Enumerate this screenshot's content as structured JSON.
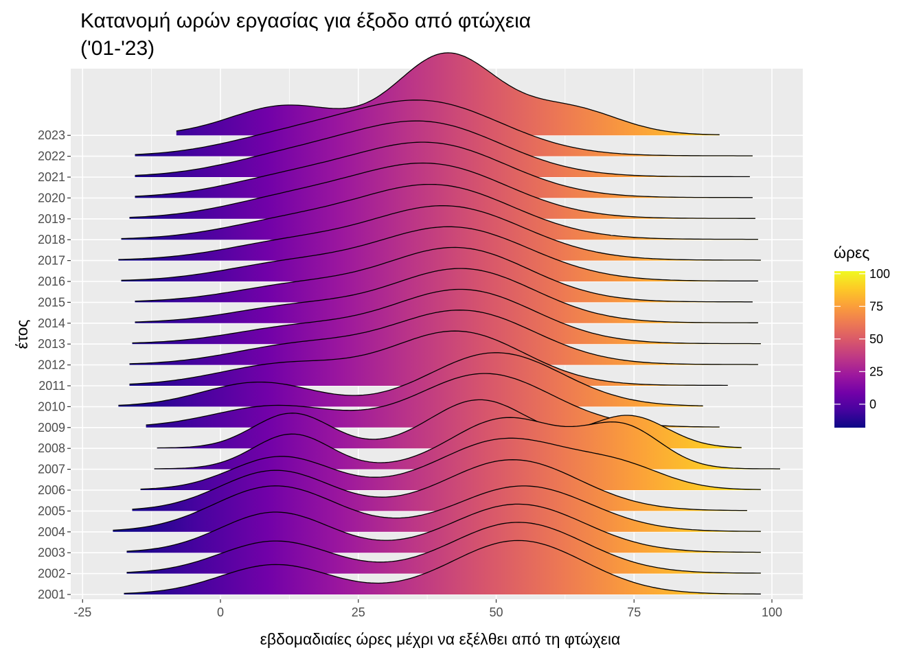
{
  "chart_data": {
    "type": "ridgeline",
    "title_line1": "Κατανομή ωρών εργασίας για έξοδο από φτώχεια",
    "title_line2": "('01-'23)",
    "xlabel": "εβδομαδιαίες ώρες μέχρι να εξέλθει από τη φτώχεια",
    "ylabel": "έτος",
    "xlim": [
      -25,
      106
    ],
    "x_ticks": [
      -25,
      0,
      25,
      50,
      75,
      100
    ],
    "x_tick_labels": [
      "-25",
      "0",
      "25",
      "50",
      "75",
      "100"
    ],
    "grid": true,
    "legend": {
      "title": "ώρες",
      "position": "right",
      "range": [
        -18,
        102
      ],
      "ticks": [
        0,
        25,
        50,
        75,
        100
      ],
      "tick_labels": [
        "0",
        "25",
        "50",
        "75",
        "100"
      ],
      "colormap": "plasma"
    },
    "colors": {
      "panel_background": "#ebebeb",
      "grid": "#ffffff",
      "outline": "#000000",
      "plasma_low": "#0d0887",
      "plasma_mid": "#cc4778",
      "plasma_high": "#f0f921"
    },
    "series": [
      {
        "year": "2001",
        "x_min": -17.5,
        "x_max": 98,
        "peaks": [
          {
            "mu": 10,
            "sd": 10,
            "h": 0.55
          },
          {
            "mu": 54,
            "sd": 12,
            "h": 1.0
          }
        ]
      },
      {
        "year": "2002",
        "x_min": -17,
        "x_max": 98,
        "peaks": [
          {
            "mu": 10,
            "sd": 10,
            "h": 0.6
          },
          {
            "mu": 54,
            "sd": 12,
            "h": 0.95
          }
        ]
      },
      {
        "year": "2003",
        "x_min": -17,
        "x_max": 98,
        "peaks": [
          {
            "mu": 10,
            "sd": 10,
            "h": 0.75
          },
          {
            "mu": 54,
            "sd": 12,
            "h": 0.9
          }
        ]
      },
      {
        "year": "2004",
        "x_min": -19.5,
        "x_max": 98,
        "peaks": [
          {
            "mu": 10,
            "sd": 11,
            "h": 0.85
          },
          {
            "mu": 55,
            "sd": 12,
            "h": 0.85
          }
        ]
      },
      {
        "year": "2005",
        "x_min": -16,
        "x_max": 95.5,
        "peaks": [
          {
            "mu": 10,
            "sd": 10,
            "h": 0.75
          },
          {
            "mu": 53,
            "sd": 12,
            "h": 0.95
          }
        ]
      },
      {
        "year": "2006",
        "x_min": -14.5,
        "x_max": 98,
        "peaks": [
          {
            "mu": 11,
            "sd": 9,
            "h": 0.62
          },
          {
            "mu": 52,
            "sd": 12,
            "h": 0.95
          },
          {
            "mu": 73,
            "sd": 8,
            "h": 0.35
          }
        ]
      },
      {
        "year": "2007",
        "x_min": -12,
        "x_max": 101.5,
        "peaks": [
          {
            "mu": 13,
            "sd": 7,
            "h": 0.65
          },
          {
            "mu": 52,
            "sd": 10,
            "h": 0.95
          },
          {
            "mu": 73,
            "sd": 7,
            "h": 0.75
          }
        ]
      },
      {
        "year": "2008",
        "x_min": -11.5,
        "x_max": 94.5,
        "peaks": [
          {
            "mu": 13,
            "sd": 7,
            "h": 0.65
          },
          {
            "mu": 47,
            "sd": 9,
            "h": 0.9
          },
          {
            "mu": 74,
            "sd": 7,
            "h": 0.6
          }
        ]
      },
      {
        "year": "2009",
        "x_min": -13.5,
        "x_max": 90.5,
        "peaks": [
          {
            "mu": 10,
            "sd": 11,
            "h": 0.4
          },
          {
            "mu": 48,
            "sd": 12,
            "h": 1.0
          }
        ]
      },
      {
        "year": "2010",
        "x_min": -18.5,
        "x_max": 87.5,
        "peaks": [
          {
            "mu": 7,
            "sd": 10,
            "h": 0.45
          },
          {
            "mu": 50,
            "sd": 12,
            "h": 1.0
          }
        ]
      },
      {
        "year": "2011",
        "x_min": -16.5,
        "x_max": 92,
        "peaks": [
          {
            "mu": 12,
            "sd": 12,
            "h": 0.4
          },
          {
            "mu": 43,
            "sd": 12,
            "h": 1.0
          }
        ]
      },
      {
        "year": "2012",
        "x_min": -16.5,
        "x_max": 97.5,
        "peaks": [
          {
            "mu": 14,
            "sd": 12,
            "h": 0.35
          },
          {
            "mu": 44,
            "sd": 13,
            "h": 1.0
          }
        ]
      },
      {
        "year": "2013",
        "x_min": -16,
        "x_max": 98,
        "peaks": [
          {
            "mu": 14,
            "sd": 12,
            "h": 0.3
          },
          {
            "mu": 44,
            "sd": 13,
            "h": 1.0
          }
        ]
      },
      {
        "year": "2014",
        "x_min": -15.5,
        "x_max": 97.5,
        "peaks": [
          {
            "mu": 14,
            "sd": 12,
            "h": 0.3
          },
          {
            "mu": 44,
            "sd": 13,
            "h": 1.0
          }
        ]
      },
      {
        "year": "2015",
        "x_min": -15.5,
        "x_max": 96.5,
        "peaks": [
          {
            "mu": 14,
            "sd": 12,
            "h": 0.3
          },
          {
            "mu": 43,
            "sd": 13,
            "h": 1.0
          }
        ]
      },
      {
        "year": "2016",
        "x_min": -18,
        "x_max": 97.5,
        "peaks": [
          {
            "mu": 12,
            "sd": 12,
            "h": 0.3
          },
          {
            "mu": 42,
            "sd": 14,
            "h": 1.0
          }
        ]
      },
      {
        "year": "2017",
        "x_min": -18.5,
        "x_max": 98,
        "peaks": [
          {
            "mu": 12,
            "sd": 12,
            "h": 0.3
          },
          {
            "mu": 41,
            "sd": 14,
            "h": 1.0
          }
        ]
      },
      {
        "year": "2018",
        "x_min": -18,
        "x_max": 97.5,
        "peaks": [
          {
            "mu": 12,
            "sd": 12,
            "h": 0.3
          },
          {
            "mu": 39,
            "sd": 14,
            "h": 1.0
          }
        ]
      },
      {
        "year": "2019",
        "x_min": -16.5,
        "x_max": 97,
        "peaks": [
          {
            "mu": 12,
            "sd": 12,
            "h": 0.32
          },
          {
            "mu": 38,
            "sd": 14,
            "h": 1.0
          }
        ]
      },
      {
        "year": "2020",
        "x_min": -15.5,
        "x_max": 96.5,
        "peaks": [
          {
            "mu": 12,
            "sd": 12,
            "h": 0.32
          },
          {
            "mu": 38,
            "sd": 14,
            "h": 1.0
          }
        ]
      },
      {
        "year": "2021",
        "x_min": -15.5,
        "x_max": 96,
        "peaks": [
          {
            "mu": 12,
            "sd": 12,
            "h": 0.32
          },
          {
            "mu": 37,
            "sd": 14,
            "h": 1.0
          }
        ]
      },
      {
        "year": "2022",
        "x_min": -15.5,
        "x_max": 96.5,
        "peaks": [
          {
            "mu": 12,
            "sd": 12,
            "h": 0.32
          },
          {
            "mu": 37,
            "sd": 14,
            "h": 1.0
          }
        ]
      },
      {
        "year": "2023",
        "x_min": -8,
        "x_max": 90.5,
        "peaks": [
          {
            "mu": 12,
            "sd": 10,
            "h": 0.55
          },
          {
            "mu": 41,
            "sd": 9,
            "h": 1.5
          },
          {
            "mu": 63,
            "sd": 9,
            "h": 0.5
          }
        ]
      }
    ]
  }
}
